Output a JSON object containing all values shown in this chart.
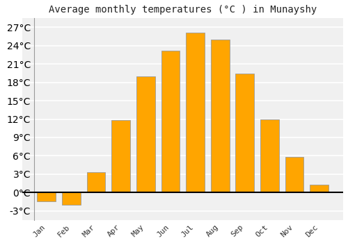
{
  "title": "Average monthly temperatures (°C ) in Munayshy",
  "months": [
    "Jan",
    "Feb",
    "Mar",
    "Apr",
    "May",
    "Jun",
    "Jul",
    "Aug",
    "Sep",
    "Oct",
    "Nov",
    "Dec"
  ],
  "values": [
    -1.5,
    -2.0,
    3.3,
    11.8,
    19.0,
    23.2,
    26.2,
    25.0,
    19.5,
    12.0,
    5.8,
    1.3
  ],
  "bar_color": "#FFA500",
  "bar_edge_color": "#999999",
  "background_color": "#ffffff",
  "plot_bg_color": "#f0f0f0",
  "grid_color": "#ffffff",
  "ylim": [
    -4.5,
    28.5
  ],
  "yticks": [
    -3,
    0,
    3,
    6,
    9,
    12,
    15,
    18,
    21,
    24,
    27
  ],
  "ytick_labels": [
    "-3°C",
    "0°C",
    "3°C",
    "6°C",
    "9°C",
    "12°C",
    "15°C",
    "18°C",
    "21°C",
    "24°C",
    "27°C"
  ],
  "title_fontsize": 10,
  "tick_fontsize": 8,
  "font_family": "monospace",
  "bar_width": 0.75
}
